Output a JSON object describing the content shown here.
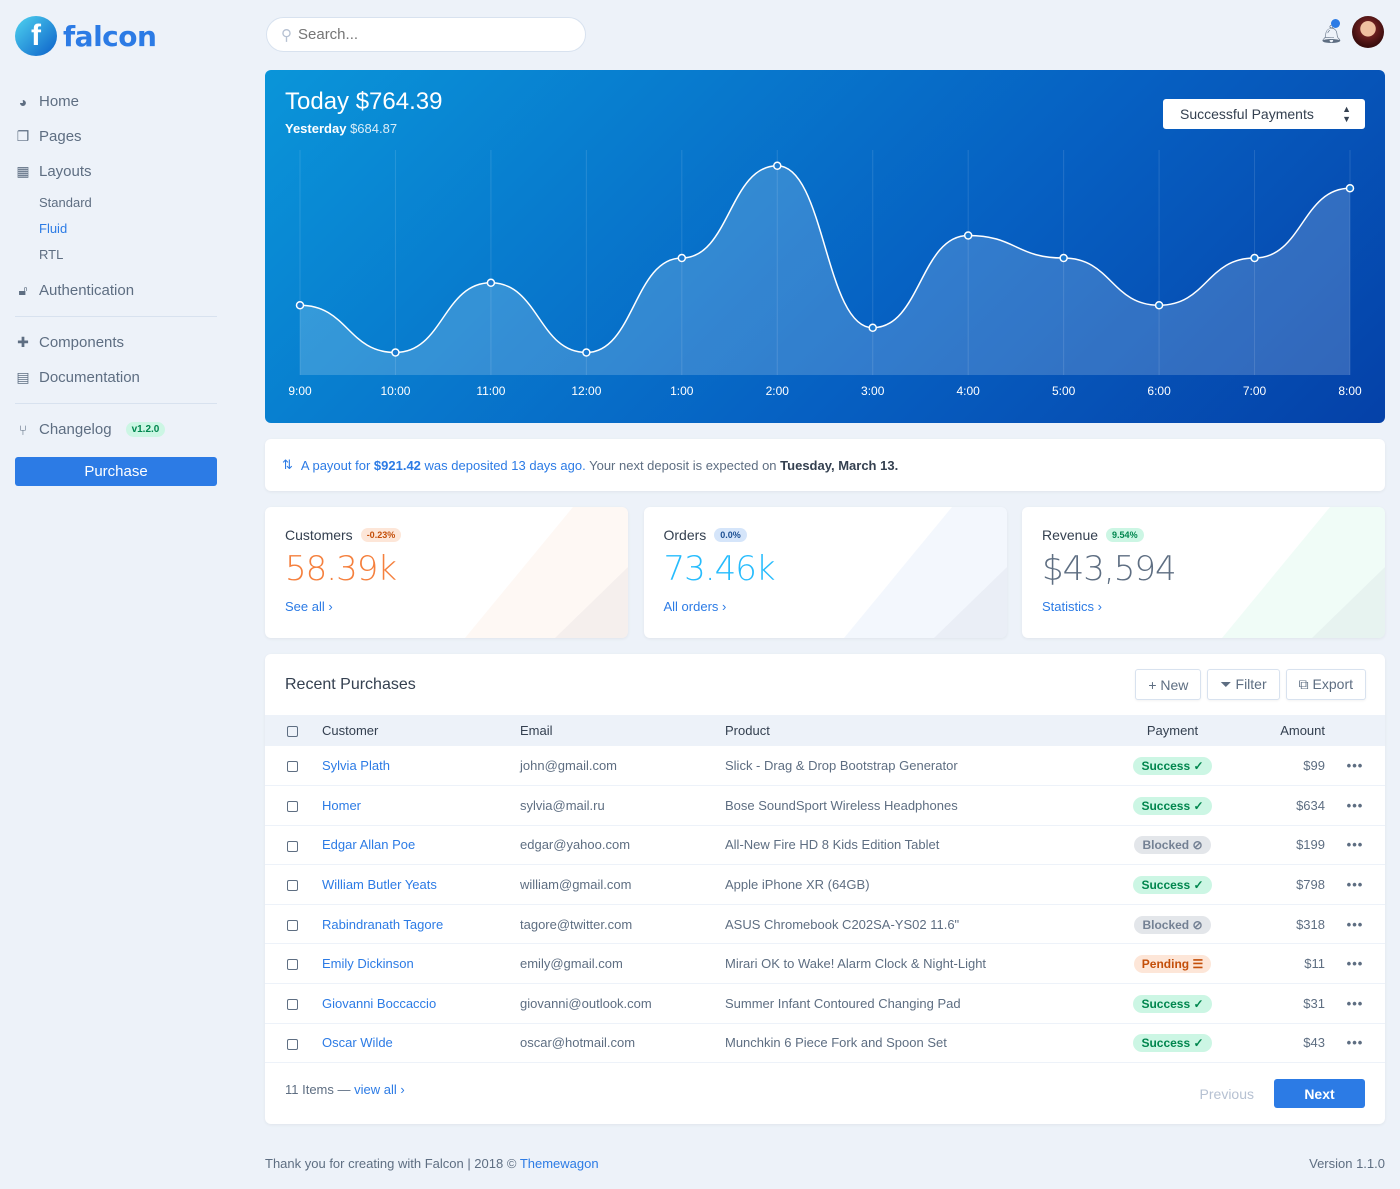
{
  "brand": {
    "name": "falcon",
    "mark": "f"
  },
  "search": {
    "placeholder": "Search..."
  },
  "sidebar": {
    "items": [
      {
        "label": "Home",
        "icon": "pie-chart-icon"
      },
      {
        "label": "Pages",
        "icon": "copy-icon"
      },
      {
        "label": "Layouts",
        "icon": "grid-icon"
      },
      {
        "label": "Authentication",
        "icon": "lock-icon"
      },
      {
        "label": "Components",
        "icon": "puzzle-icon"
      },
      {
        "label": "Documentation",
        "icon": "book-icon"
      },
      {
        "label": "Changelog",
        "icon": "code-branch-icon",
        "badge": "v1.2.0"
      }
    ],
    "layouts": [
      {
        "label": "Standard"
      },
      {
        "label": "Fluid",
        "active": true
      },
      {
        "label": "RTL"
      }
    ],
    "purchase": "Purchase"
  },
  "hero": {
    "title": "Today $764.39",
    "yesterday_label": "Yesterday",
    "yesterday_value": "$684.87",
    "select": "Successful Payments"
  },
  "chart_data": {
    "type": "area",
    "x": [
      "9:00",
      "10:00",
      "11:00",
      "12:00",
      "1:00",
      "2:00",
      "3:00",
      "4:00",
      "5:00",
      "6:00",
      "7:00",
      "8:00"
    ],
    "values": [
      31,
      10,
      41,
      10,
      52,
      93,
      21,
      62,
      52,
      31,
      52,
      83
    ],
    "ylim": [
      0,
      100
    ],
    "grid": "vertical",
    "color": "#ffffff"
  },
  "payout": {
    "pre": "A payout for",
    "amount": "$921.42",
    "mid": "was deposited 13 days ago.",
    "post": "Your next deposit is expected on",
    "date": "Tuesday, March 13."
  },
  "stats": [
    {
      "label": "Customers",
      "badge": "-0.23%",
      "value": "58.39k",
      "link": "See all ›",
      "color": "#f5803e"
    },
    {
      "label": "Orders",
      "badge": "0.0%",
      "value": "73.46k",
      "link": "All orders ›",
      "color": "#27bcfd"
    },
    {
      "label": "Revenue",
      "badge": "9.54%",
      "value": "$43,594",
      "link": "Statistics ›",
      "color": "#5e6e82"
    }
  ],
  "purchases": {
    "title": "Recent Purchases",
    "buttons": {
      "new": "+ New",
      "filter": "Filter",
      "export": "Export"
    },
    "columns": [
      "Customer",
      "Email",
      "Product",
      "Payment",
      "Amount"
    ],
    "rows": [
      {
        "customer": "Sylvia Plath",
        "email": "john@gmail.com",
        "product": "Slick - Drag & Drop Bootstrap Generator",
        "status": "Success ✓",
        "type": "success",
        "amount": "$99"
      },
      {
        "customer": "Homer",
        "email": "sylvia@mail.ru",
        "product": "Bose SoundSport Wireless Headphones",
        "status": "Success ✓",
        "type": "success",
        "amount": "$634"
      },
      {
        "customer": "Edgar Allan Poe",
        "email": "edgar@yahoo.com",
        "product": "All-New Fire HD 8 Kids Edition Tablet",
        "status": "Blocked ⊘",
        "type": "blocked",
        "amount": "$199"
      },
      {
        "customer": "William Butler Yeats",
        "email": "william@gmail.com",
        "product": "Apple iPhone XR (64GB)",
        "status": "Success ✓",
        "type": "success",
        "amount": "$798"
      },
      {
        "customer": "Rabindranath Tagore",
        "email": "tagore@twitter.com",
        "product": "ASUS Chromebook C202SA-YS02 11.6\"",
        "status": "Blocked ⊘",
        "type": "blocked",
        "amount": "$318"
      },
      {
        "customer": "Emily Dickinson",
        "email": "emily@gmail.com",
        "product": "Mirari OK to Wake! Alarm Clock & Night-Light",
        "status": "Pending ☰",
        "type": "pending",
        "amount": "$11"
      },
      {
        "customer": "Giovanni Boccaccio",
        "email": "giovanni@outlook.com",
        "product": "Summer Infant Contoured Changing Pad",
        "status": "Success ✓",
        "type": "success",
        "amount": "$31"
      },
      {
        "customer": "Oscar Wilde",
        "email": "oscar@hotmail.com",
        "product": "Munchkin 6 Piece Fork and Spoon Set",
        "status": "Success ✓",
        "type": "success",
        "amount": "$43"
      }
    ],
    "count": "11 Items —",
    "view_all": "view all ›",
    "previous": "Previous",
    "next": "Next"
  },
  "footer": {
    "text": "Thank you for creating with Falcon | 2018 ©",
    "link": "Themewagon",
    "version": "Version 1.1.0"
  }
}
